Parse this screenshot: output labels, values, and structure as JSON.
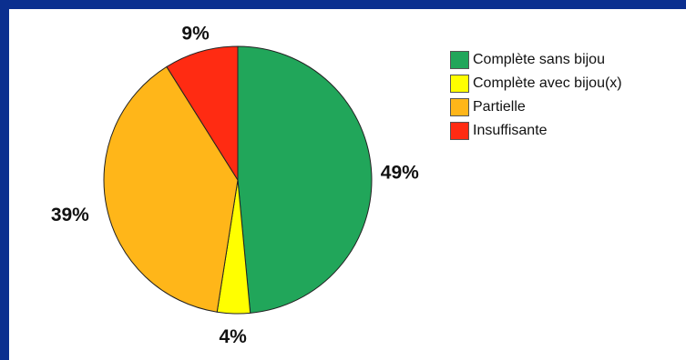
{
  "chart_data": {
    "type": "pie",
    "slices": [
      {
        "name": "Complète sans bijou",
        "value": 49,
        "label": "49%",
        "color": "#21a65a"
      },
      {
        "name": "Complète avec bijou(x)",
        "value": 4,
        "label": "4%",
        "color": "#ffff00"
      },
      {
        "name": "Partielle",
        "value": 39,
        "label": "39%",
        "color": "#ffb619"
      },
      {
        "name": "Insuffisante",
        "value": 9,
        "label": "9%",
        "color": "#ff2b12"
      }
    ],
    "legend_position": "top-right"
  },
  "colors": {
    "frame_background": "#0b2f8f",
    "plot_background": "#ffffff"
  }
}
